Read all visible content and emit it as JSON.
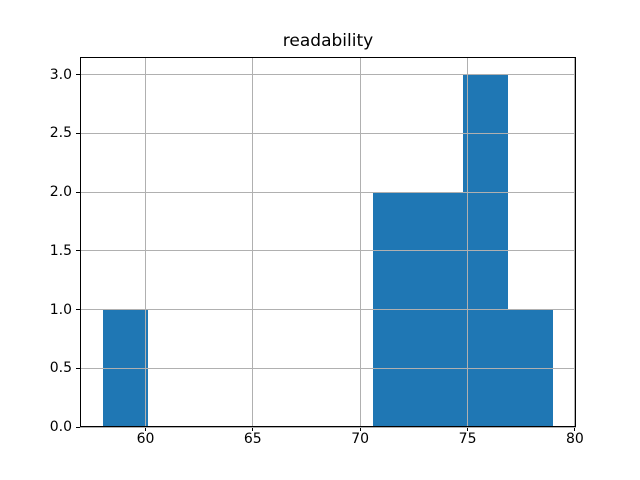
{
  "chart_data": {
    "type": "bar",
    "subtype": "histogram",
    "title": "readability",
    "xlabel": "",
    "ylabel": "",
    "bin_edges": [
      58.0,
      60.1,
      62.2,
      64.3,
      66.4,
      68.5,
      70.6,
      72.7,
      74.8,
      76.9,
      79.0
    ],
    "counts": [
      1,
      0,
      0,
      0,
      0,
      0,
      2,
      2,
      3,
      1
    ],
    "xlim": [
      56.95,
      80.05
    ],
    "ylim": [
      0,
      3.15
    ],
    "xticks": [
      60,
      65,
      70,
      75,
      80
    ],
    "xtick_labels": [
      "60",
      "65",
      "70",
      "75",
      "80"
    ],
    "yticks": [
      0.0,
      0.5,
      1.0,
      1.5,
      2.0,
      2.5,
      3.0
    ],
    "ytick_labels": [
      "0.0",
      "0.5",
      "1.0",
      "1.5",
      "2.0",
      "2.5",
      "3.0"
    ],
    "grid": true,
    "grid_above_bars": true,
    "legend": null,
    "colors": {
      "bar": "#1f77b4",
      "grid": "#b0b0b0",
      "spine": "#000000",
      "background": "#ffffff",
      "text": "#000000"
    }
  }
}
